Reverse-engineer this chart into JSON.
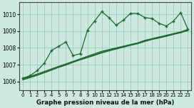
{
  "title": "Graphe pression niveau de la mer (hPa)",
  "background_color": "#cce8e0",
  "grid_color": "#99ccbb",
  "line_color": "#1a6b2a",
  "xlim": [
    -0.5,
    23.5
  ],
  "ylim": [
    1005.5,
    1010.7
  ],
  "yticks": [
    1006,
    1007,
    1008,
    1009,
    1010
  ],
  "xticks": [
    0,
    1,
    2,
    3,
    4,
    5,
    6,
    7,
    8,
    9,
    10,
    11,
    12,
    13,
    14,
    15,
    16,
    17,
    18,
    19,
    20,
    21,
    22,
    23
  ],
  "line1": [
    1006.2,
    1006.35,
    1006.65,
    1007.1,
    1007.85,
    1008.1,
    1008.35,
    1007.55,
    1007.65,
    1009.05,
    1009.6,
    1010.15,
    1009.8,
    1009.35,
    1009.65,
    1010.05,
    1010.05,
    1009.8,
    1009.75,
    1009.45,
    1009.3,
    1009.6,
    1010.1,
    1009.1
  ],
  "line2": [
    1006.2,
    1006.3,
    1006.45,
    1006.6,
    1006.75,
    1006.9,
    1007.05,
    1007.2,
    1007.35,
    1007.5,
    1007.65,
    1007.8,
    1007.9,
    1008.0,
    1008.1,
    1008.2,
    1008.3,
    1008.45,
    1008.55,
    1008.65,
    1008.75,
    1008.85,
    1008.95,
    1009.1
  ],
  "line3": [
    1006.15,
    1006.27,
    1006.4,
    1006.55,
    1006.72,
    1006.88,
    1007.02,
    1007.17,
    1007.32,
    1007.46,
    1007.6,
    1007.75,
    1007.86,
    1007.97,
    1008.08,
    1008.18,
    1008.28,
    1008.42,
    1008.53,
    1008.62,
    1008.72,
    1008.83,
    1008.93,
    1009.07
  ],
  "line4": [
    1006.1,
    1006.23,
    1006.37,
    1006.52,
    1006.68,
    1006.84,
    1006.98,
    1007.14,
    1007.29,
    1007.42,
    1007.56,
    1007.7,
    1007.82,
    1007.93,
    1008.04,
    1008.15,
    1008.25,
    1008.38,
    1008.5,
    1008.59,
    1008.69,
    1008.8,
    1008.9,
    1009.03
  ]
}
